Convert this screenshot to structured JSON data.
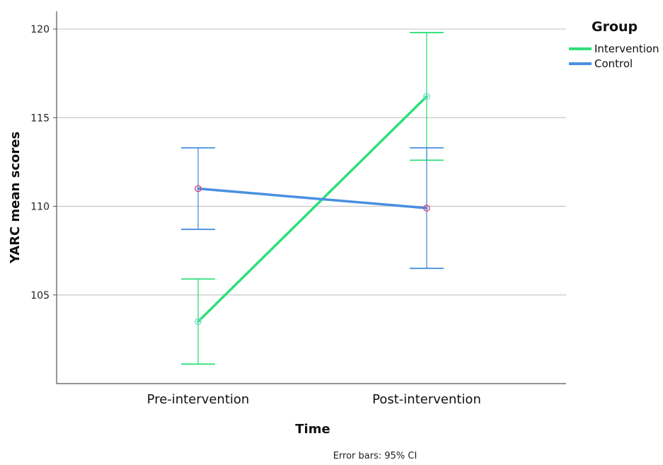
{
  "chart_data": {
    "type": "line",
    "xlabel": "Time",
    "ylabel": "YARC mean scores",
    "categories": [
      "Pre-intervention",
      "Post-intervention"
    ],
    "ylim": [
      100,
      121
    ],
    "yticks": [
      105,
      110,
      115,
      120
    ],
    "grid": true,
    "legend": {
      "title": "Group",
      "placement": "top-right"
    },
    "series": [
      {
        "name": "Intervention",
        "color": "#2ee07a",
        "values": [
          103.5,
          116.2
        ],
        "ci_lower": [
          101.1,
          112.6
        ],
        "ci_upper": [
          105.9,
          119.8
        ]
      },
      {
        "name": "Control",
        "color": "#4a8fe0",
        "values": [
          111.0,
          109.9
        ],
        "ci_lower": [
          108.7,
          106.5
        ],
        "ci_upper": [
          113.3,
          113.3
        ]
      }
    ],
    "footnote": "Error bars: 95% CI",
    "marker_edge_color": "#e0457a"
  }
}
